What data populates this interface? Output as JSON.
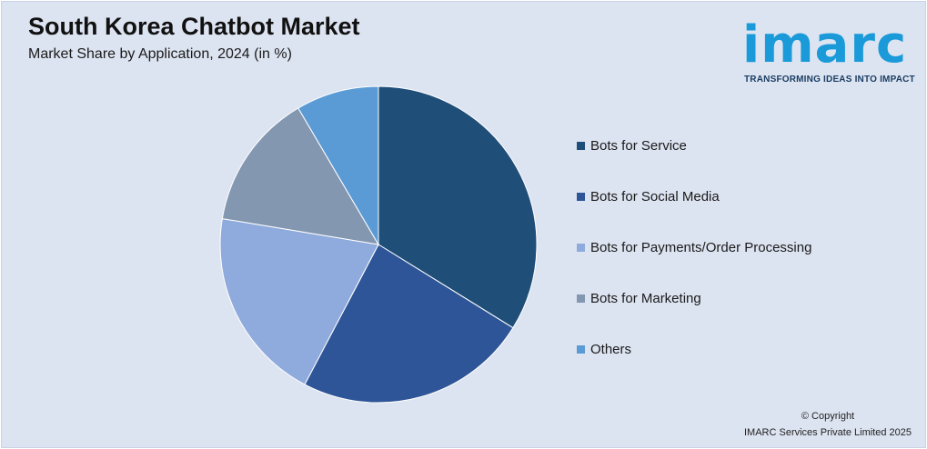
{
  "header": {
    "title": "South Korea Chatbot Market",
    "subtitle": "Market Share by Application, 2024 (in %)"
  },
  "logo": {
    "word": "imarc",
    "tagline": "TRANSFORMING IDEAS INTO IMPACT",
    "color": "#1a9ad8"
  },
  "chart_data": {
    "type": "pie",
    "start_angle_deg": 0,
    "direction": "clockwise",
    "categories": [
      "Bots for Service",
      "Bots for Social Media",
      "Bots for Payments/Order Processing",
      "Bots for Marketing",
      "Others"
    ],
    "values": [
      34,
      24,
      20,
      14,
      8.5
    ],
    "colors": [
      "#1f4e79",
      "#2e5597",
      "#8faadc",
      "#8497b0",
      "#5b9bd5"
    ],
    "legend_placement": "right"
  },
  "footer": {
    "copyright": "© Copyright",
    "company": "IMARC Services Private Limited 2025"
  }
}
